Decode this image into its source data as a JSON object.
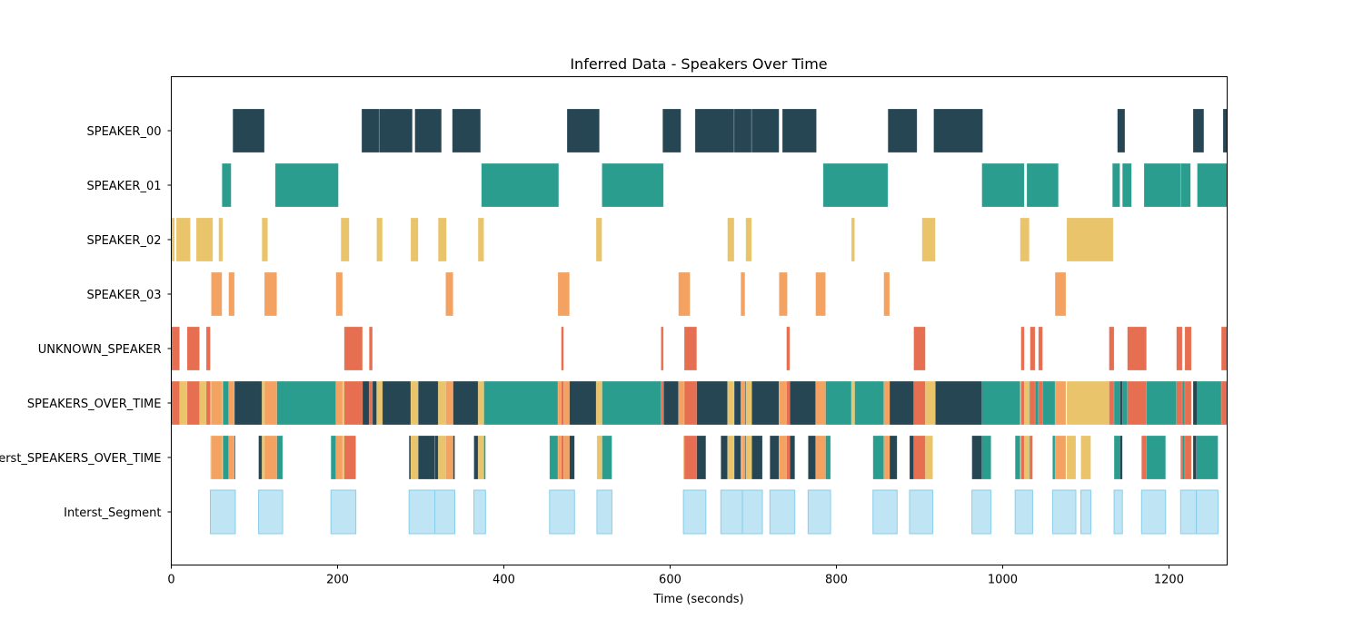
{
  "chart_data": {
    "type": "timeline",
    "title": "Inferred Data - Speakers Over Time",
    "xlabel": "Time (seconds)",
    "ylabel": "",
    "xlim": [
      0,
      1270
    ],
    "x_ticks": [
      0,
      200,
      400,
      600,
      800,
      1000,
      1200
    ],
    "grid": false,
    "rows": [
      {
        "name": "SPEAKER_00",
        "color": "#264653",
        "segments": [
          [
            74,
            112
          ],
          [
            229,
            250
          ],
          [
            250,
            290
          ],
          [
            293,
            325
          ],
          [
            338,
            372
          ],
          [
            476,
            515
          ],
          [
            591,
            613
          ],
          [
            630,
            677
          ],
          [
            677,
            698
          ],
          [
            698,
            731
          ],
          [
            735,
            776
          ],
          [
            862,
            897
          ],
          [
            917,
            976
          ],
          [
            1138,
            1147
          ],
          [
            1229,
            1242
          ],
          [
            1265,
            1270
          ]
        ]
      },
      {
        "name": "SPEAKER_01",
        "color": "#2A9D8F",
        "segments": [
          [
            61,
            72
          ],
          [
            125,
            201
          ],
          [
            373,
            466
          ],
          [
            518,
            592
          ],
          [
            784,
            862
          ],
          [
            975,
            1026
          ],
          [
            1029,
            1067
          ],
          [
            1132,
            1141
          ],
          [
            1144,
            1155
          ],
          [
            1170,
            1214
          ],
          [
            1214,
            1226
          ],
          [
            1234,
            1270
          ]
        ]
      },
      {
        "name": "SPEAKER_02",
        "color": "#E9C46A",
        "segments": [
          [
            0,
            4
          ],
          [
            6,
            23
          ],
          [
            30,
            50
          ],
          [
            57,
            62
          ],
          [
            109,
            116
          ],
          [
            204,
            214
          ],
          [
            247,
            254
          ],
          [
            288,
            297
          ],
          [
            321,
            331
          ],
          [
            369,
            376
          ],
          [
            511,
            518
          ],
          [
            669,
            677
          ],
          [
            691,
            698
          ],
          [
            818,
            822
          ],
          [
            903,
            919
          ],
          [
            1021,
            1032
          ],
          [
            1077,
            1133
          ]
        ]
      },
      {
        "name": "SPEAKER_03",
        "color": "#F4A261",
        "segments": [
          [
            48,
            61
          ],
          [
            69,
            76
          ],
          [
            112,
            127
          ],
          [
            198,
            206
          ],
          [
            330,
            339
          ],
          [
            465,
            479
          ],
          [
            610,
            624
          ],
          [
            685,
            690
          ],
          [
            731,
            741
          ],
          [
            775,
            787
          ],
          [
            857,
            864
          ],
          [
            1063,
            1076
          ]
        ]
      },
      {
        "name": "UNKNOWN_SPEAKER",
        "color": "#E76F51",
        "segments": [
          [
            0,
            10
          ],
          [
            19,
            34
          ],
          [
            42,
            47
          ],
          [
            208,
            230
          ],
          [
            238,
            242
          ],
          [
            469,
            472
          ],
          [
            589,
            592
          ],
          [
            617,
            632
          ],
          [
            740,
            744
          ],
          [
            893,
            907
          ],
          [
            1022,
            1026
          ],
          [
            1033,
            1039
          ],
          [
            1043,
            1048
          ],
          [
            1128,
            1134
          ],
          [
            1150,
            1173
          ],
          [
            1209,
            1216
          ],
          [
            1219,
            1227
          ],
          [
            1263,
            1270
          ]
        ]
      },
      {
        "name": "SPEAKERS_OVER_TIME",
        "color": "#264653",
        "segments": [],
        "blend_of_rows": true
      },
      {
        "name": "Interst_SPEAKERS_OVER_TIME",
        "color": "#264653",
        "segments": [],
        "blend_of_rows": true,
        "masked_by": "Interst_Segment"
      },
      {
        "name": "Interst_Segment",
        "color": "#AADCF0",
        "segments": [
          [
            47,
            77
          ],
          [
            105,
            134
          ],
          [
            192,
            222
          ],
          [
            286,
            317
          ],
          [
            317,
            341
          ],
          [
            364,
            378
          ],
          [
            455,
            485
          ],
          [
            512,
            530
          ],
          [
            616,
            643
          ],
          [
            661,
            687
          ],
          [
            687,
            711
          ],
          [
            720,
            750
          ],
          [
            766,
            793
          ],
          [
            844,
            873
          ],
          [
            888,
            916
          ],
          [
            963,
            986
          ],
          [
            1015,
            1036
          ],
          [
            1060,
            1088
          ],
          [
            1094,
            1106
          ],
          [
            1134,
            1144
          ],
          [
            1167,
            1196
          ],
          [
            1214,
            1233
          ],
          [
            1233,
            1259
          ]
        ]
      }
    ]
  }
}
